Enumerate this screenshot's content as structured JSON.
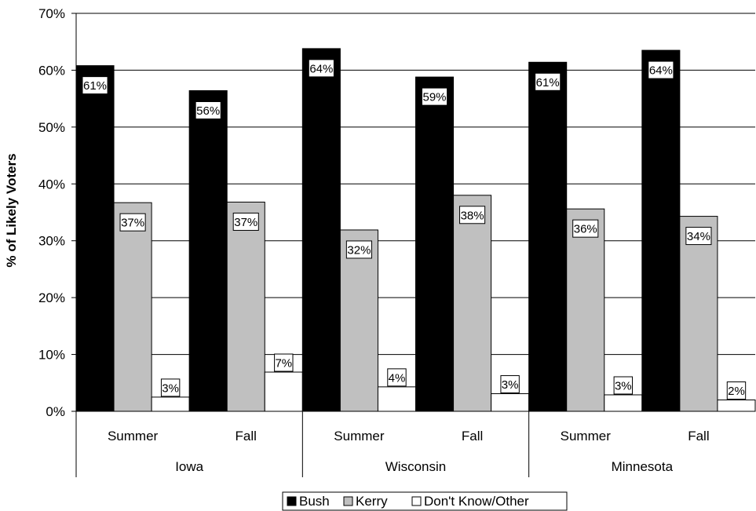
{
  "chart_data": {
    "type": "bar",
    "ylabel": "% of Likely Voters",
    "ylim": [
      0,
      70
    ],
    "yticks": [
      "0%",
      "10%",
      "20%",
      "30%",
      "40%",
      "50%",
      "60%",
      "70%"
    ],
    "grid": true,
    "legend_position": "bottom",
    "groups": [
      {
        "state": "Iowa",
        "periods": [
          "Summer",
          "Fall"
        ]
      },
      {
        "state": "Wisconsin",
        "periods": [
          "Summer",
          "Fall"
        ]
      },
      {
        "state": "Minnesota",
        "periods": [
          "Summer",
          "Fall"
        ]
      }
    ],
    "series": [
      {
        "name": "Bush",
        "color": "#000000",
        "values": [
          60.8,
          56.4,
          63.8,
          58.8,
          61.4,
          63.5
        ],
        "labels": [
          "61%",
          "56%",
          "64%",
          "59%",
          "61%",
          "64%"
        ]
      },
      {
        "name": "Kerry",
        "color": "#c0c0c0",
        "values": [
          36.7,
          36.8,
          31.9,
          38.0,
          35.6,
          34.3
        ],
        "labels": [
          "37%",
          "37%",
          "32%",
          "38%",
          "36%",
          "34%"
        ]
      },
      {
        "name": "Don't Know/Other",
        "color": "#ffffff",
        "values": [
          2.5,
          6.9,
          4.3,
          3.1,
          2.9,
          2.0
        ],
        "labels": [
          "3%",
          "7%",
          "4%",
          "3%",
          "3%",
          "2%"
        ]
      }
    ]
  }
}
